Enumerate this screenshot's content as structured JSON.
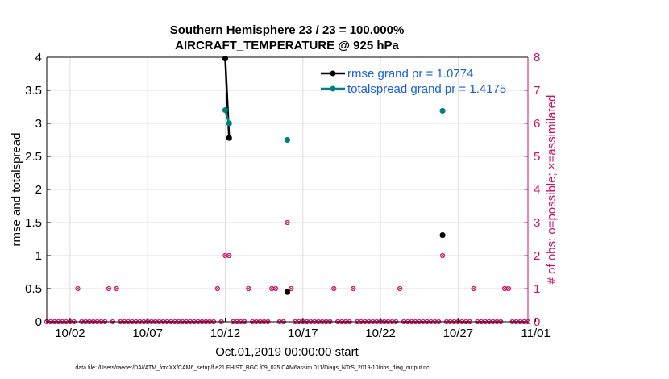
{
  "chart_data": {
    "type": "line",
    "title": "Southern Hemisphere 23 / 23 = 100.000%",
    "subtitle": "AIRCRAFT_TEMPERATURE @ 925 hPa",
    "xlabel": "Oct.01,2019 00:00:00 start",
    "ylabel": "rmse and totalspread",
    "ylabel_right": "# of obs: o=possible; ×=assimilated",
    "xlim": [
      0.5,
      31.5
    ],
    "ylim": [
      0,
      4
    ],
    "ylim_right": [
      0,
      8
    ],
    "x_tick_values": [
      2,
      7,
      12,
      17,
      22,
      27,
      32
    ],
    "x_tick_labels": [
      "10/02",
      "10/07",
      "10/12",
      "10/17",
      "10/22",
      "10/27",
      "11/01"
    ],
    "y_ticks": [
      "0",
      "0.5",
      "1",
      "1.5",
      "2",
      "2.5",
      "3",
      "3.5",
      "4"
    ],
    "y_ticks_right": [
      "0",
      "1",
      "2",
      "3",
      "4",
      "5",
      "6",
      "7",
      "8"
    ],
    "grid": true,
    "legend_position": "top-right",
    "colors": {
      "rmse": "#000000",
      "totalspread": "#008080",
      "obs": "#cc1166"
    },
    "series": [
      {
        "name": "rmse grand pr = 1.0774",
        "color": "#000000",
        "points": [
          [
            12.0,
            3.98
          ],
          [
            12.25,
            2.78
          ],
          [
            16.0,
            0.45
          ],
          [
            26.0,
            1.31
          ]
        ]
      },
      {
        "name": "totalspread grand pr = 1.4175",
        "color": "#008080",
        "points": [
          [
            12.0,
            3.2
          ],
          [
            12.25,
            3.0
          ],
          [
            16.0,
            2.75
          ],
          [
            26.0,
            3.19
          ]
        ]
      }
    ],
    "obs_nonzero": [
      [
        2.5,
        1
      ],
      [
        4.5,
        1
      ],
      [
        5.0,
        1
      ],
      [
        11.5,
        1
      ],
      [
        12.0,
        2
      ],
      [
        12.25,
        2
      ],
      [
        13.5,
        1
      ],
      [
        15.0,
        1
      ],
      [
        15.25,
        1
      ],
      [
        16.0,
        3
      ],
      [
        16.25,
        1
      ],
      [
        19.0,
        1
      ],
      [
        20.25,
        1
      ],
      [
        23.25,
        1
      ],
      [
        26.0,
        2
      ],
      [
        28.0,
        1
      ],
      [
        30.0,
        1
      ],
      [
        30.25,
        1
      ]
    ]
  },
  "footer": "data file: /Users/raeder/DAI/ATM_forcXX/CAM6_setup/f.e21.FHIST_BGC.f09_025.CAM6assim.011/Diags_NTrS_2019-10/obs_diag_output.nc"
}
